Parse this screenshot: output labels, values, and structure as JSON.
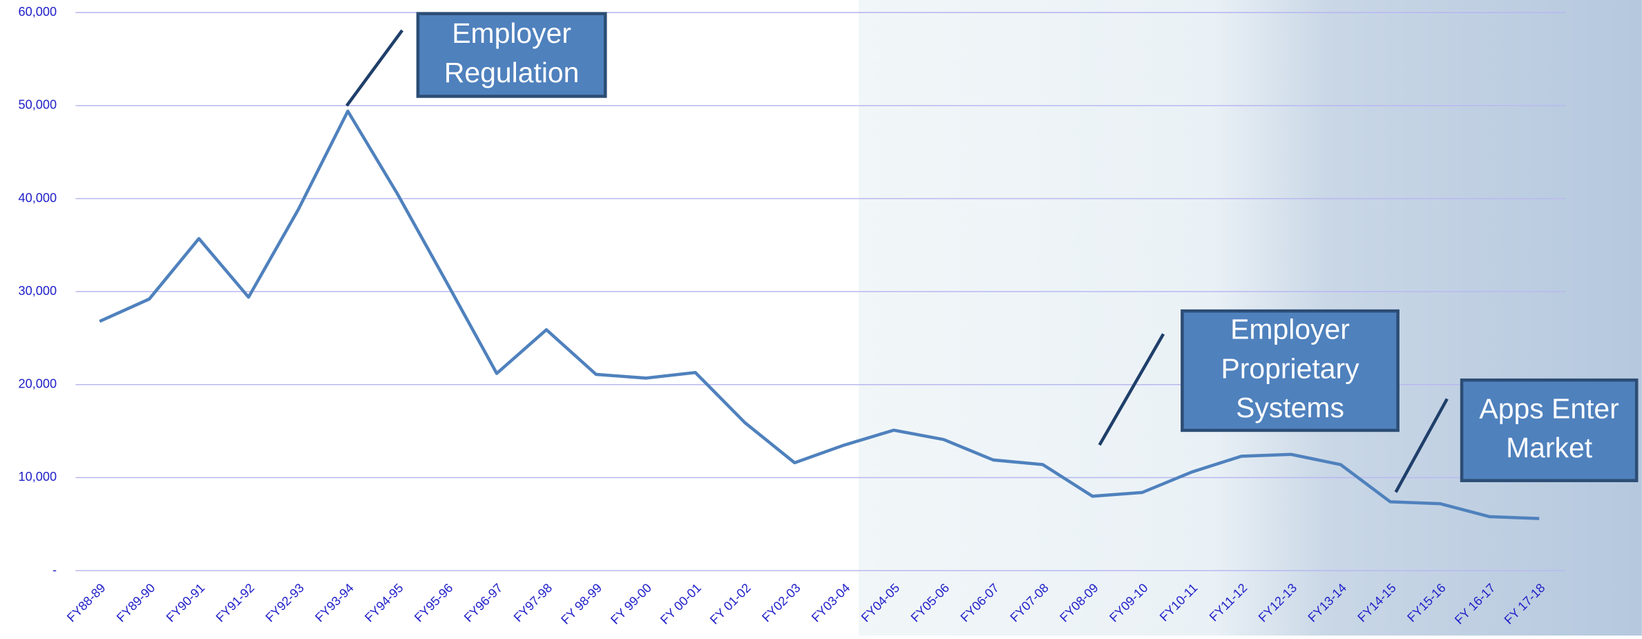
{
  "chart_data": {
    "type": "line",
    "categories": [
      "FY88-89",
      "FY89-90",
      "FY90-91",
      "FY91-92",
      "FY92-93",
      "FY93-94",
      "FY94-95",
      "FY95-96",
      "FY96-97",
      "FY97-98",
      "FY 98-99",
      "FY 99-00",
      "FY 00-01",
      "FY 01-02",
      "FY02-03",
      "FY03-04",
      "FY04-05",
      "FY05-06",
      "FY06-07",
      "FY07-08",
      "FY08-09",
      "FY09-10",
      "FY10-11",
      "FY11-12",
      "FY12-13",
      "FY13-14",
      "FY14-15",
      "FY15-16",
      "FY 16-17",
      "FY 17-18"
    ],
    "values": [
      26800,
      29200,
      35700,
      29400,
      38800,
      49400,
      40500,
      30900,
      21200,
      25900,
      21100,
      20700,
      21300,
      15900,
      11600,
      13500,
      15100,
      14100,
      11900,
      11400,
      8000,
      8400,
      10600,
      12300,
      12500,
      11400,
      7400,
      7200,
      5800,
      5600
    ],
    "color": "#4f81bd",
    "ylim": [
      0,
      60000
    ],
    "yticks": [
      {
        "value": 0,
        "label": "-"
      },
      {
        "value": 10000,
        "label": "10,000"
      },
      {
        "value": 20000,
        "label": "20,000"
      },
      {
        "value": 30000,
        "label": "30,000"
      },
      {
        "value": 40000,
        "label": "40,000"
      },
      {
        "value": 50000,
        "label": "50,000"
      },
      {
        "value": 60000,
        "label": "60,000"
      }
    ],
    "grid": true,
    "annotations": [
      {
        "lines": [
          "Employer",
          "Regulation"
        ]
      },
      {
        "lines": [
          "Employer",
          "Proprietary",
          "Systems"
        ]
      },
      {
        "lines": [
          "Apps Enter",
          "Market"
        ]
      }
    ]
  }
}
